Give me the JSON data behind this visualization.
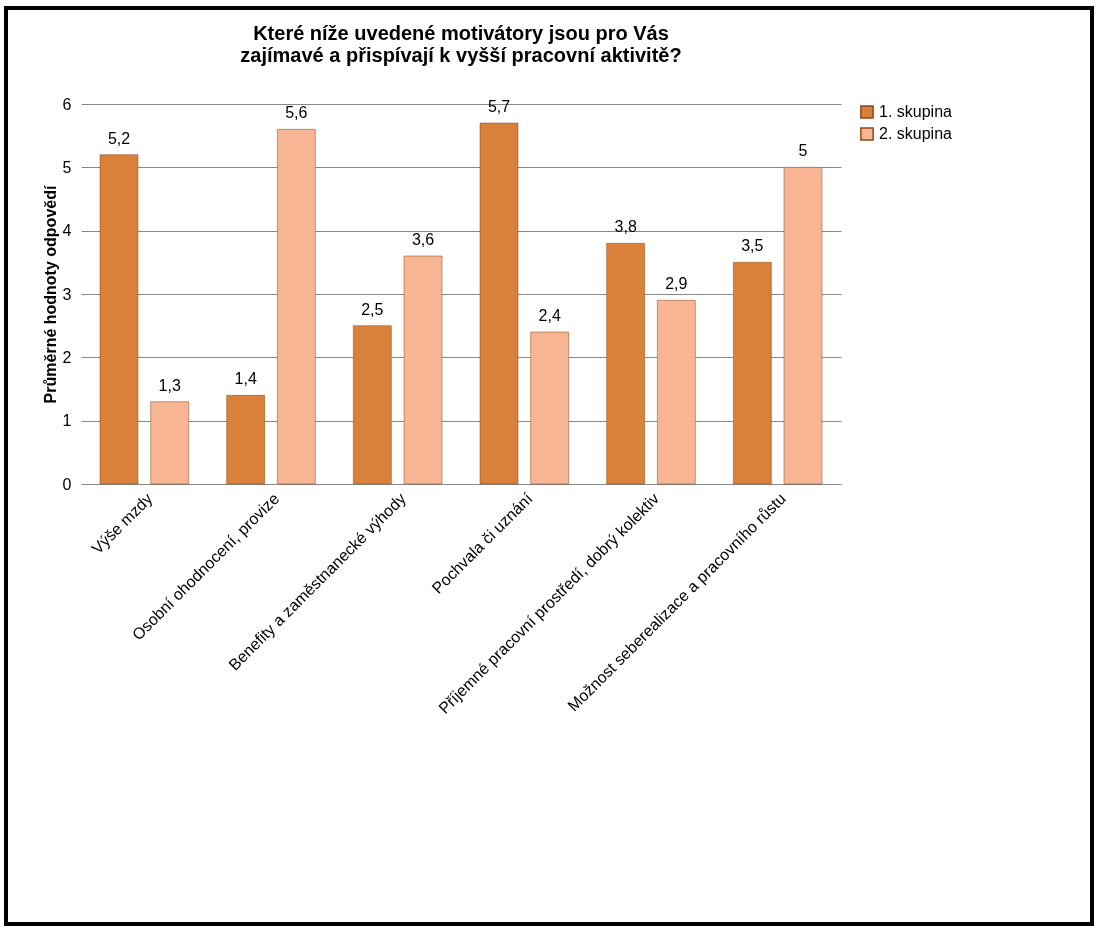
{
  "chart_data": {
    "type": "bar",
    "title": "Které níže uvedené motivátory jsou pro Vás zajímavé a přispívají k vyšší pracovní aktivitě?",
    "ylabel": "Průměrné hodnoty odpovědí",
    "categories": [
      "Výše mzdy",
      "Osobní ohodnocení, provize",
      "Benefity a zaměstnanecké výhody",
      "Pochvala či uznání",
      "Příjemné pracovní prostředí, dobrý kolektiv",
      "Možnost seberealizace a pracovního růstu"
    ],
    "series": [
      {
        "name": "1. skupina",
        "color": "#d9803a",
        "values": [
          5.2,
          1.4,
          2.5,
          5.7,
          3.8,
          3.5
        ],
        "value_labels": [
          "5,2",
          "1,4",
          "2,5",
          "5,7",
          "3,8",
          "3,5"
        ]
      },
      {
        "name": "2. skupina",
        "color": "#f8b593",
        "values": [
          1.3,
          5.6,
          3.6,
          2.4,
          2.9,
          5
        ],
        "value_labels": [
          "1,3",
          "5,6",
          "3,6",
          "2,4",
          "2,9",
          "5"
        ]
      }
    ],
    "ylim": [
      0,
      6
    ],
    "yticks": [
      0,
      1,
      2,
      3,
      4,
      5,
      6
    ],
    "grid": "y",
    "legend": "right"
  }
}
